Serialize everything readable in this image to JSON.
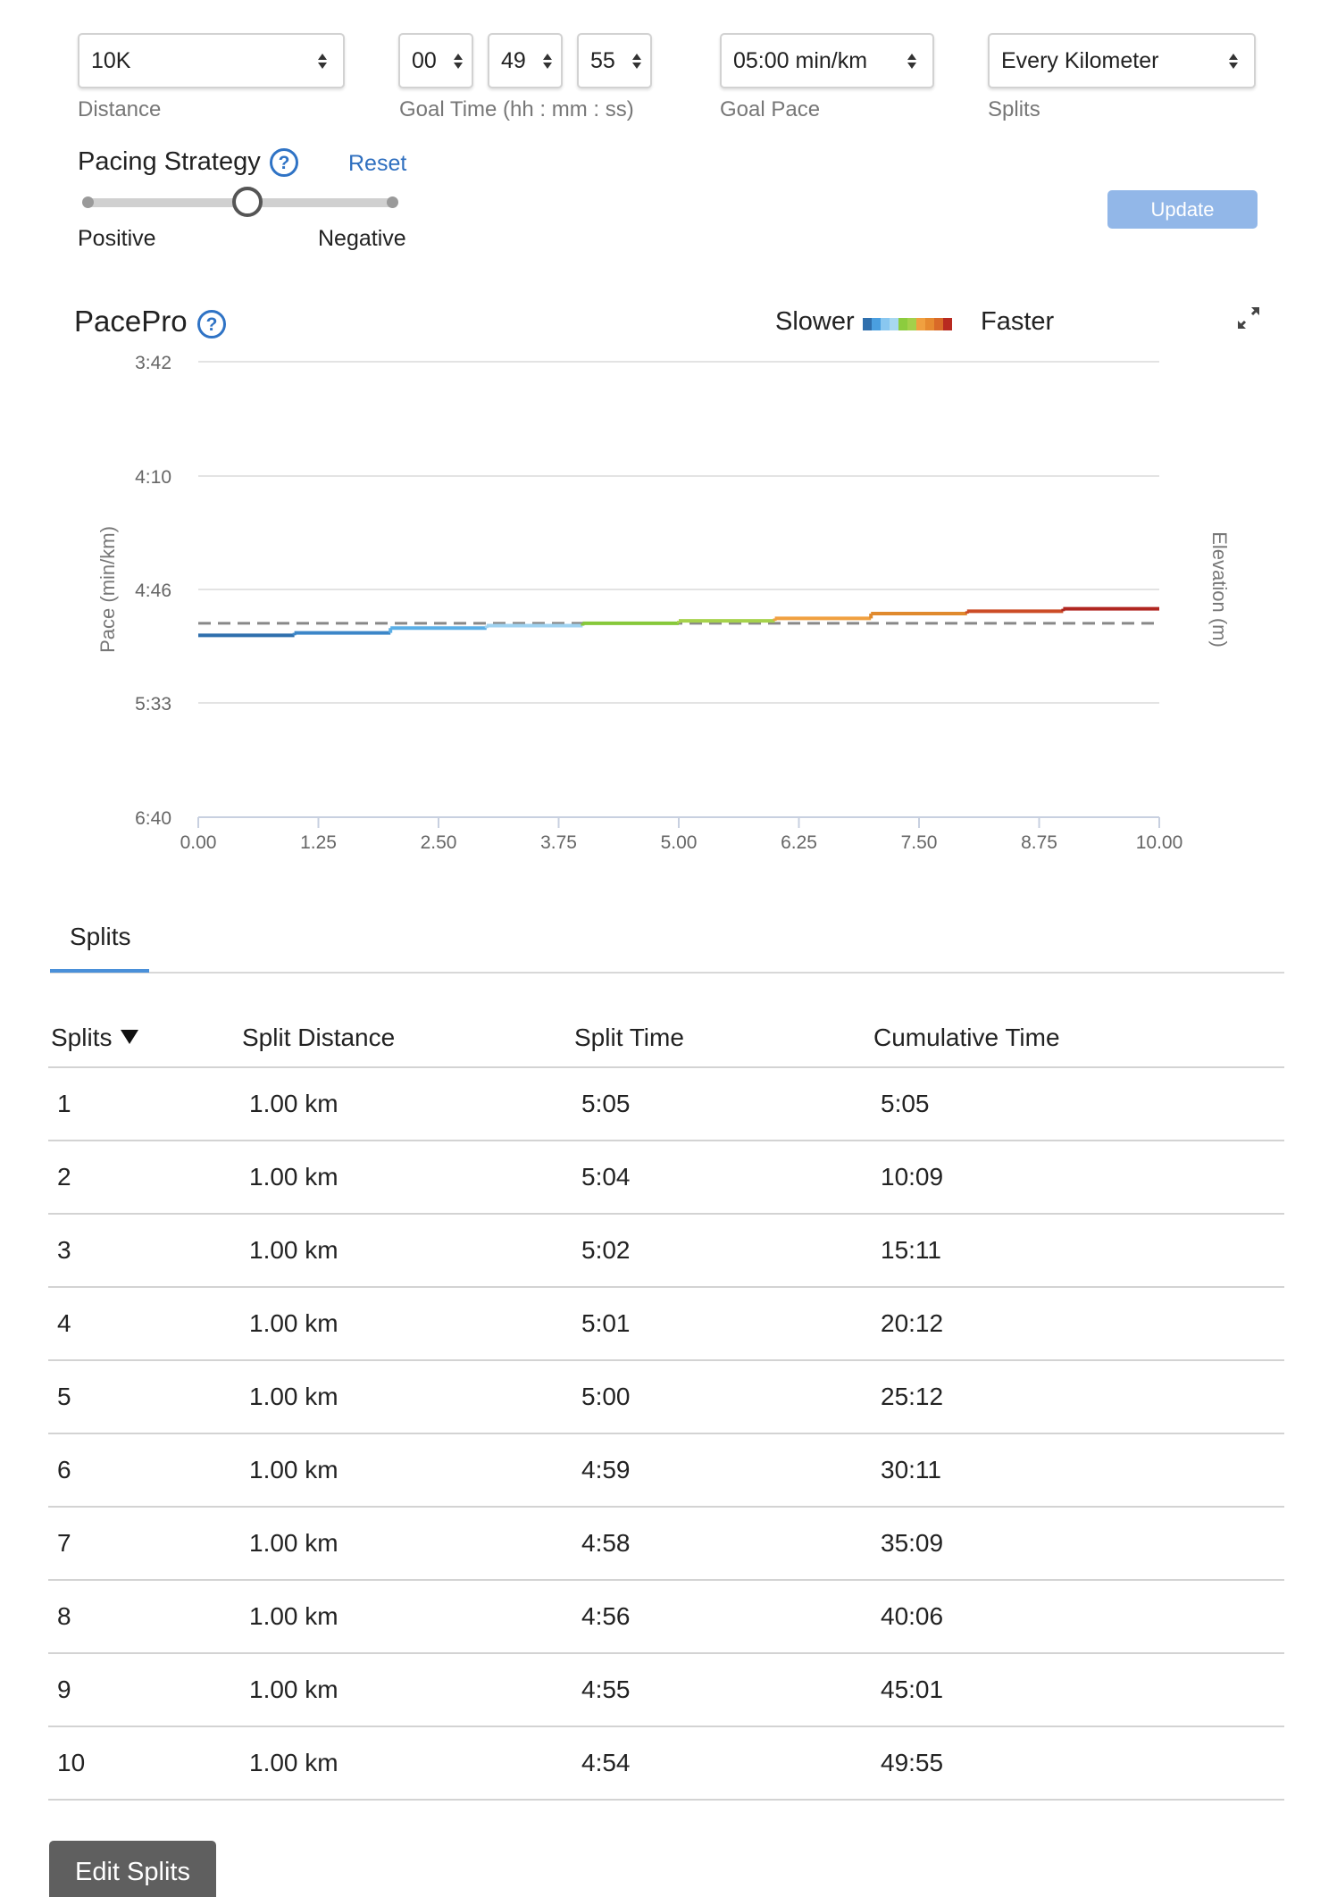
{
  "form": {
    "distance": {
      "value": "10K",
      "label": "Distance"
    },
    "goal_time": {
      "hh": "00",
      "mm": "49",
      "ss": "55",
      "label": "Goal Time (hh : mm : ss)"
    },
    "goal_pace": {
      "value": "05:00 min/km",
      "label": "Goal Pace"
    },
    "splits": {
      "value": "Every Kilometer",
      "label": "Splits"
    }
  },
  "pacing": {
    "title": "Pacing Strategy",
    "help_icon": "question-circle-icon",
    "reset_label": "Reset",
    "slider_left_label": "Positive",
    "slider_right_label": "Negative",
    "slider_level": 0.52,
    "update_label": "Update"
  },
  "pacepro": {
    "title": "PacePro",
    "help_icon": "question-circle-icon",
    "legend_slower": "Slower",
    "legend_faster": "Faster",
    "legend_colors": [
      "#2f6fad",
      "#4a9fe0",
      "#89c7f0",
      "#a8d8f0",
      "#8ccc3e",
      "#a4d04a",
      "#f0a040",
      "#e68a30",
      "#d96a28",
      "#b82a20"
    ],
    "expand_icon": "expand-icon"
  },
  "chart_data": {
    "type": "line",
    "step": true,
    "xlabel": "",
    "ylabel": "Pace (min/km)",
    "y2label": "Elevation (m)",
    "x_ticks": [
      "0.00",
      "1.25",
      "2.50",
      "3.75",
      "5.00",
      "6.25",
      "7.50",
      "8.75",
      "10.00"
    ],
    "xlim": [
      0,
      10
    ],
    "y_ticks": [
      "3:42",
      "4:10",
      "4:46",
      "5:33",
      "6:40"
    ],
    "y_inverted": true,
    "grid": true,
    "series": [
      {
        "segments": [
          {
            "x": [
              0,
              1
            ],
            "pace": "5:05",
            "color": "#2f6fad"
          },
          {
            "x": [
              1,
              2
            ],
            "pace": "5:04",
            "color": "#3c86c8"
          },
          {
            "x": [
              2,
              3
            ],
            "pace": "5:02",
            "color": "#5aaee6"
          },
          {
            "x": [
              3,
              4
            ],
            "pace": "5:01",
            "color": "#9fd2f0"
          },
          {
            "x": [
              4,
              5
            ],
            "pace": "5:00",
            "color": "#86c83a"
          },
          {
            "x": [
              5,
              6
            ],
            "pace": "4:59",
            "color": "#a6d24c"
          },
          {
            "x": [
              6,
              7
            ],
            "pace": "4:58",
            "color": "#f0a040"
          },
          {
            "x": [
              7,
              8
            ],
            "pace": "4:56",
            "color": "#e08a2e"
          },
          {
            "x": [
              8,
              9
            ],
            "pace": "4:55",
            "color": "#cc4c26"
          },
          {
            "x": [
              9,
              10
            ],
            "pace": "4:54",
            "color": "#b02620"
          }
        ]
      }
    ],
    "goal_pace_line": "5:00"
  },
  "splits_tab": {
    "label": "Splits"
  },
  "table": {
    "headers": [
      "Splits",
      "Split Distance",
      "Split Time",
      "Cumulative Time"
    ],
    "rows": [
      [
        "1",
        "1.00 km",
        "5:05",
        "5:05"
      ],
      [
        "2",
        "1.00 km",
        "5:04",
        "10:09"
      ],
      [
        "3",
        "1.00 km",
        "5:02",
        "15:11"
      ],
      [
        "4",
        "1.00 km",
        "5:01",
        "20:12"
      ],
      [
        "5",
        "1.00 km",
        "5:00",
        "25:12"
      ],
      [
        "6",
        "1.00 km",
        "4:59",
        "30:11"
      ],
      [
        "7",
        "1.00 km",
        "4:58",
        "35:09"
      ],
      [
        "8",
        "1.00 km",
        "4:56",
        "40:06"
      ],
      [
        "9",
        "1.00 km",
        "4:55",
        "45:01"
      ],
      [
        "10",
        "1.00 km",
        "4:54",
        "49:55"
      ]
    ]
  },
  "edit_splits_label": "Edit Splits"
}
